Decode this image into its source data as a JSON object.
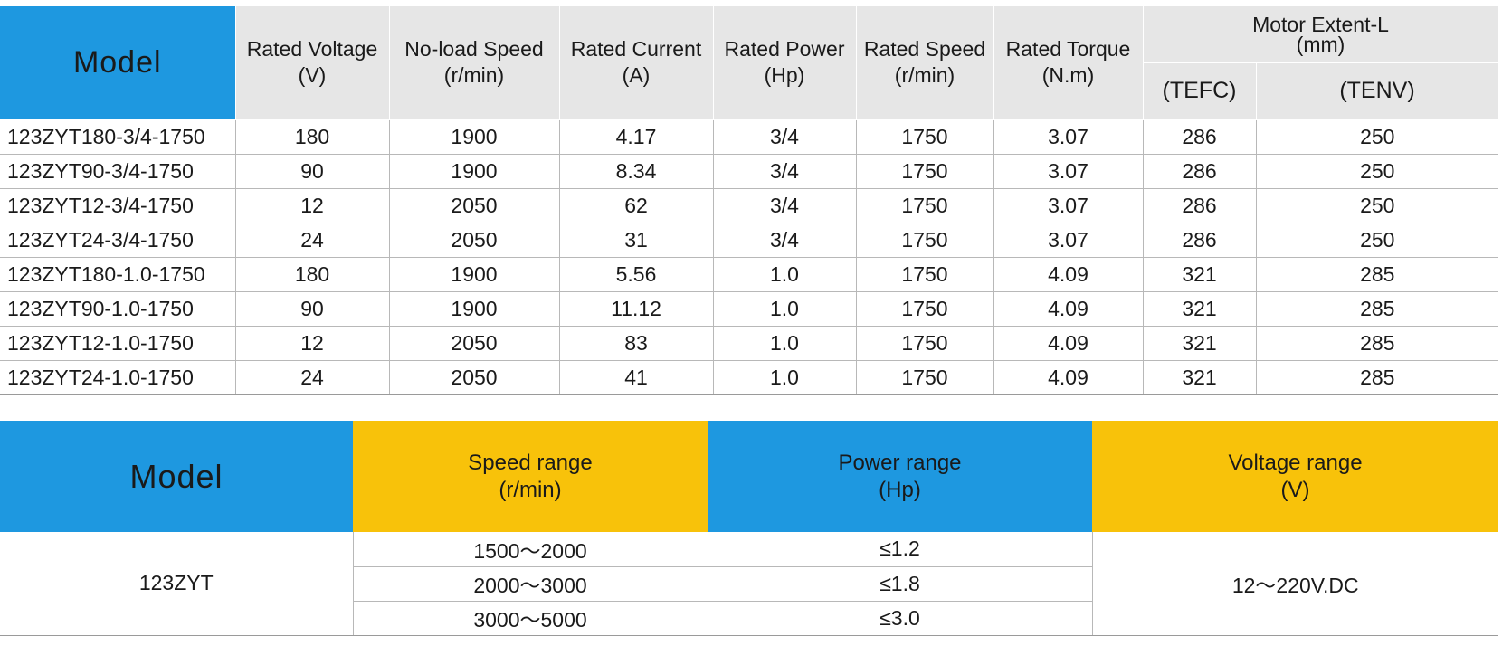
{
  "colors": {
    "blue": "#1e98e0",
    "yellow": "#f8c20a",
    "header_gray": "#e6e6e6",
    "border": "#b8b8b8"
  },
  "spec_table": {
    "headers": {
      "model": "Model",
      "rated_voltage": [
        "Rated Voltage",
        "(V)"
      ],
      "no_load_speed": [
        "No-load Speed",
        "(r/min)"
      ],
      "rated_current": [
        "Rated Current",
        "(A)"
      ],
      "rated_power": [
        "Rated Power",
        "(Hp)"
      ],
      "rated_speed": [
        "Rated Speed",
        "(r/min)"
      ],
      "rated_torque": [
        "Rated Torque",
        "(N.m)"
      ],
      "motor_extent": [
        "Motor Extent-L",
        "(mm)"
      ],
      "tefc": "(TEFC)",
      "tenv": "(TENV)"
    },
    "rows": [
      [
        "123ZYT180-3/4-1750",
        "180",
        "1900",
        "4.17",
        "3/4",
        "1750",
        "3.07",
        "286",
        "250"
      ],
      [
        "123ZYT90-3/4-1750",
        "90",
        "1900",
        "8.34",
        "3/4",
        "1750",
        "3.07",
        "286",
        "250"
      ],
      [
        "123ZYT12-3/4-1750",
        "12",
        "2050",
        "62",
        "3/4",
        "1750",
        "3.07",
        "286",
        "250"
      ],
      [
        "123ZYT24-3/4-1750",
        "24",
        "2050",
        "31",
        "3/4",
        "1750",
        "3.07",
        "286",
        "250"
      ],
      [
        "123ZYT180-1.0-1750",
        "180",
        "1900",
        "5.56",
        "1.0",
        "1750",
        "4.09",
        "321",
        "285"
      ],
      [
        "123ZYT90-1.0-1750",
        "90",
        "1900",
        "11.12",
        "1.0",
        "1750",
        "4.09",
        "321",
        "285"
      ],
      [
        "123ZYT12-1.0-1750",
        "12",
        "2050",
        "83",
        "1.0",
        "1750",
        "4.09",
        "321",
        "285"
      ],
      [
        "123ZYT24-1.0-1750",
        "24",
        "2050",
        "41",
        "1.0",
        "1750",
        "4.09",
        "321",
        "285"
      ]
    ]
  },
  "range_table": {
    "headers": {
      "model": "Model",
      "speed_range": [
        "Speed range",
        "(r/min)"
      ],
      "power_range": [
        "Power range",
        "(Hp)"
      ],
      "voltage_range": [
        "Voltage range",
        "(V)"
      ]
    },
    "model": "123ZYT",
    "speed_ranges": [
      "1500～2000",
      "2000～3000",
      "3000～5000"
    ],
    "power_ranges": [
      "≤1.2",
      "≤1.8",
      "≤3.0"
    ],
    "voltage_range": "12～220V.DC"
  }
}
